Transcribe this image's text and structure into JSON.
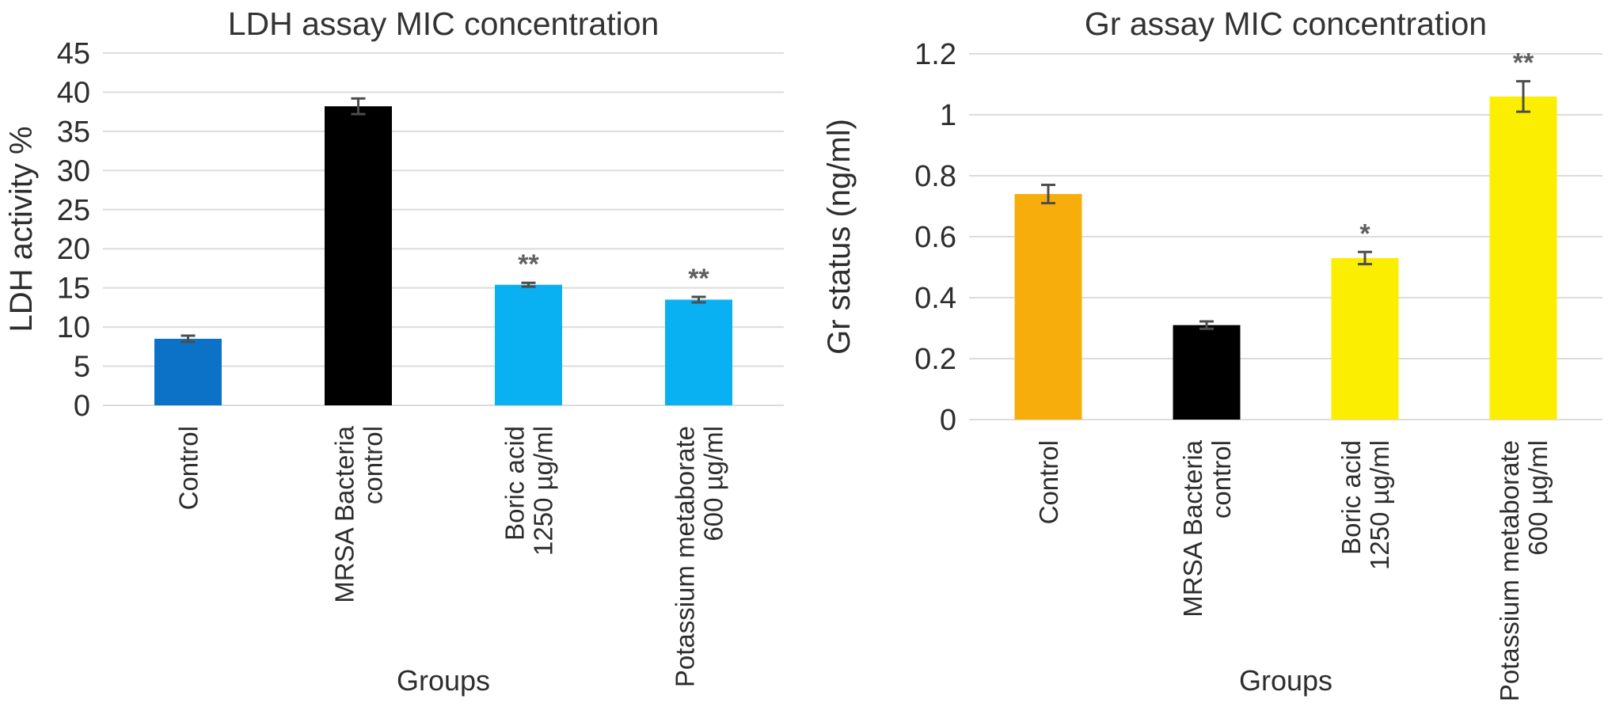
{
  "figure": {
    "background": "#ffffff",
    "text_color": "#2d2d2d",
    "grid_color": "#dcdcdc",
    "error_bar_color": "#4d4d4d",
    "significance_color": "#5f5f5f"
  },
  "chart_data": [
    {
      "type": "bar",
      "title": "LDH assay MIC concentration",
      "xlabel": "Groups",
      "ylabel": "LDH activity %",
      "ylim": [
        0,
        45
      ],
      "ytick_step": 5,
      "ytick_labels": [
        "0",
        "5",
        "10",
        "15",
        "20",
        "25",
        "30",
        "35",
        "40",
        "45"
      ],
      "grid": true,
      "legend": "none",
      "categories": [
        "Control",
        "MRSA Bacteria\ncontrol",
        "Boric acid\n1250 µg/ml",
        "Potassium metaborate\n600 µg/ml"
      ],
      "values": [
        8.5,
        38.2,
        15.4,
        13.5
      ],
      "errors": [
        0.4,
        1.0,
        0.25,
        0.35
      ],
      "significance": [
        "",
        "",
        "**",
        "**"
      ],
      "bar_colors": [
        "#0b72c8",
        "#000000",
        "#09b1f2",
        "#09b1f2"
      ]
    },
    {
      "type": "bar",
      "title": "Gr assay MIC concentration",
      "xlabel": "Groups",
      "ylabel": "Gr status (ng/ml)",
      "ylim": [
        0,
        1.2
      ],
      "ytick_step": 0.2,
      "ytick_labels": [
        "0",
        "0.2",
        "0.4",
        "0.6",
        "0.8",
        "1",
        "1.2"
      ],
      "grid": true,
      "legend": "none",
      "categories": [
        "Control",
        "MRSA Bacteria\ncontrol",
        "Boric acid\n1250 µg/ml",
        "Potassium metaborate\n600 µg/ml"
      ],
      "values": [
        0.74,
        0.31,
        0.53,
        1.06
      ],
      "errors": [
        0.03,
        0.012,
        0.02,
        0.05
      ],
      "significance": [
        "",
        "",
        "*",
        "**"
      ],
      "bar_colors": [
        "#f7ae0d",
        "#000000",
        "#fbee00",
        "#fbee00"
      ]
    }
  ]
}
